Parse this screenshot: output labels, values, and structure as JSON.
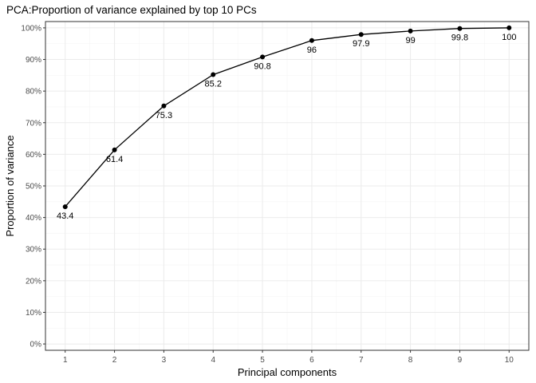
{
  "chart_data": {
    "type": "line",
    "title": "PCA:Proportion of variance explained by top 10 PCs",
    "xlabel": "Principal components",
    "ylabel": "Proportion of variance",
    "x": [
      1,
      2,
      3,
      4,
      5,
      6,
      7,
      8,
      9,
      10
    ],
    "values": [
      43.4,
      61.4,
      75.3,
      85.2,
      90.8,
      96,
      97.9,
      99,
      99.8,
      100
    ],
    "data_labels": [
      "43.4",
      "61.4",
      "75.3",
      "85.2",
      "90.8",
      "96",
      "97.9",
      "99",
      "99.8",
      "100"
    ],
    "xticks": [
      1,
      2,
      3,
      4,
      5,
      6,
      7,
      8,
      9,
      10
    ],
    "yticks": [
      0,
      10,
      20,
      30,
      40,
      50,
      60,
      70,
      80,
      90,
      100
    ],
    "ytick_labels": [
      "0%",
      "10%",
      "20%",
      "30%",
      "40%",
      "50%",
      "60%",
      "70%",
      "80%",
      "90%",
      "100%"
    ],
    "xlim": [
      0.6,
      10.4
    ],
    "ylim": [
      -2,
      102
    ],
    "grid": true,
    "line_color": "#000000",
    "point_color": "#000000"
  }
}
